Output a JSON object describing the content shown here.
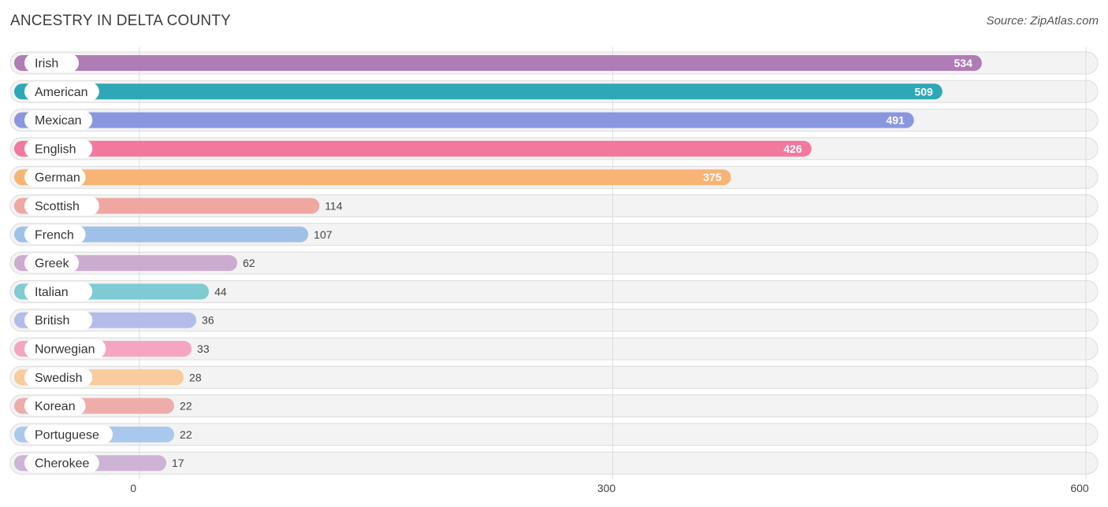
{
  "header": {
    "title": "ANCESTRY IN DELTA COUNTY",
    "source": "Source: ZipAtlas.com"
  },
  "chart_data": {
    "type": "bar",
    "orientation": "horizontal",
    "title": "ANCESTRY IN DELTA COUNTY",
    "xlabel": "",
    "ylabel": "",
    "xlim": [
      0,
      600
    ],
    "ticks": [
      0,
      300,
      600
    ],
    "grid": true,
    "categories": [
      "Irish",
      "American",
      "Mexican",
      "English",
      "German",
      "Scottish",
      "French",
      "Greek",
      "Italian",
      "British",
      "Norwegian",
      "Swedish",
      "Korean",
      "Portuguese",
      "Cherokee"
    ],
    "values": [
      534,
      509,
      491,
      426,
      375,
      114,
      107,
      62,
      44,
      36,
      33,
      28,
      22,
      22,
      17
    ],
    "colors": [
      "#b07cb5",
      "#2ea8b6",
      "#8a97e0",
      "#f2789e",
      "#f7b474",
      "#eea7a1",
      "#9fc1e8",
      "#ccabd0",
      "#7ecbd3",
      "#b4bcea",
      "#f5a5c2",
      "#f8cc9c",
      "#eeadab",
      "#a9c9ec",
      "#cdb3d6"
    ]
  }
}
